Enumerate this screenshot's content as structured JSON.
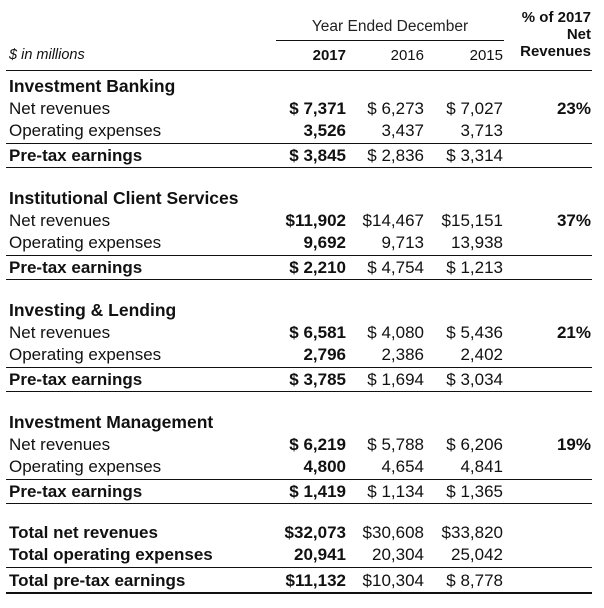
{
  "header": {
    "year_ended": "Year Ended December",
    "pct_line1": "% of 2017",
    "pct_line2": "Net",
    "pct_line3": "Revenues",
    "unit": "$ in millions",
    "years": [
      "2017",
      "2016",
      "2015"
    ]
  },
  "segments": [
    {
      "name": "Investment Banking",
      "net_revenues_label": "Net revenues",
      "operating_expenses_label": "Operating expenses",
      "pretax_label": "Pre-tax earnings",
      "net_revenues": [
        "$ 7,371",
        "$ 6,273",
        "$ 7,027"
      ],
      "operating_expenses": [
        "3,526",
        "3,437",
        "3,713"
      ],
      "pretax": [
        "$ 3,845",
        "$ 2,836",
        "$ 3,314"
      ],
      "pct": "23%"
    },
    {
      "name": "Institutional Client Services",
      "net_revenues_label": "Net revenues",
      "operating_expenses_label": "Operating expenses",
      "pretax_label": "Pre-tax earnings",
      "net_revenues": [
        "$11,902",
        "$14,467",
        "$15,151"
      ],
      "operating_expenses": [
        "9,692",
        "9,713",
        "13,938"
      ],
      "pretax": [
        "$ 2,210",
        "$ 4,754",
        "$ 1,213"
      ],
      "pct": "37%"
    },
    {
      "name": "Investing & Lending",
      "net_revenues_label": "Net revenues",
      "operating_expenses_label": "Operating expenses",
      "pretax_label": "Pre-tax earnings",
      "net_revenues": [
        "$ 6,581",
        "$ 4,080",
        "$ 5,436"
      ],
      "operating_expenses": [
        "2,796",
        "2,386",
        "2,402"
      ],
      "pretax": [
        "$ 3,785",
        "$ 1,694",
        "$ 3,034"
      ],
      "pct": "21%"
    },
    {
      "name": "Investment Management",
      "net_revenues_label": "Net revenues",
      "operating_expenses_label": "Operating expenses",
      "pretax_label": "Pre-tax earnings",
      "net_revenues": [
        "$ 6,219",
        "$ 5,788",
        "$ 6,206"
      ],
      "operating_expenses": [
        "4,800",
        "4,654",
        "4,841"
      ],
      "pretax": [
        "$ 1,419",
        "$ 1,134",
        "$ 1,365"
      ],
      "pct": "19%"
    }
  ],
  "totals": {
    "net_revenues_label": "Total net revenues",
    "operating_expenses_label": "Total operating expenses",
    "pretax_label": "Total pre-tax earnings",
    "net_revenues": [
      "$32,073",
      "$30,608",
      "$33,820"
    ],
    "operating_expenses": [
      "20,941",
      "20,304",
      "25,042"
    ],
    "pretax": [
      "$11,132",
      "$10,304",
      "$ 8,778"
    ]
  }
}
